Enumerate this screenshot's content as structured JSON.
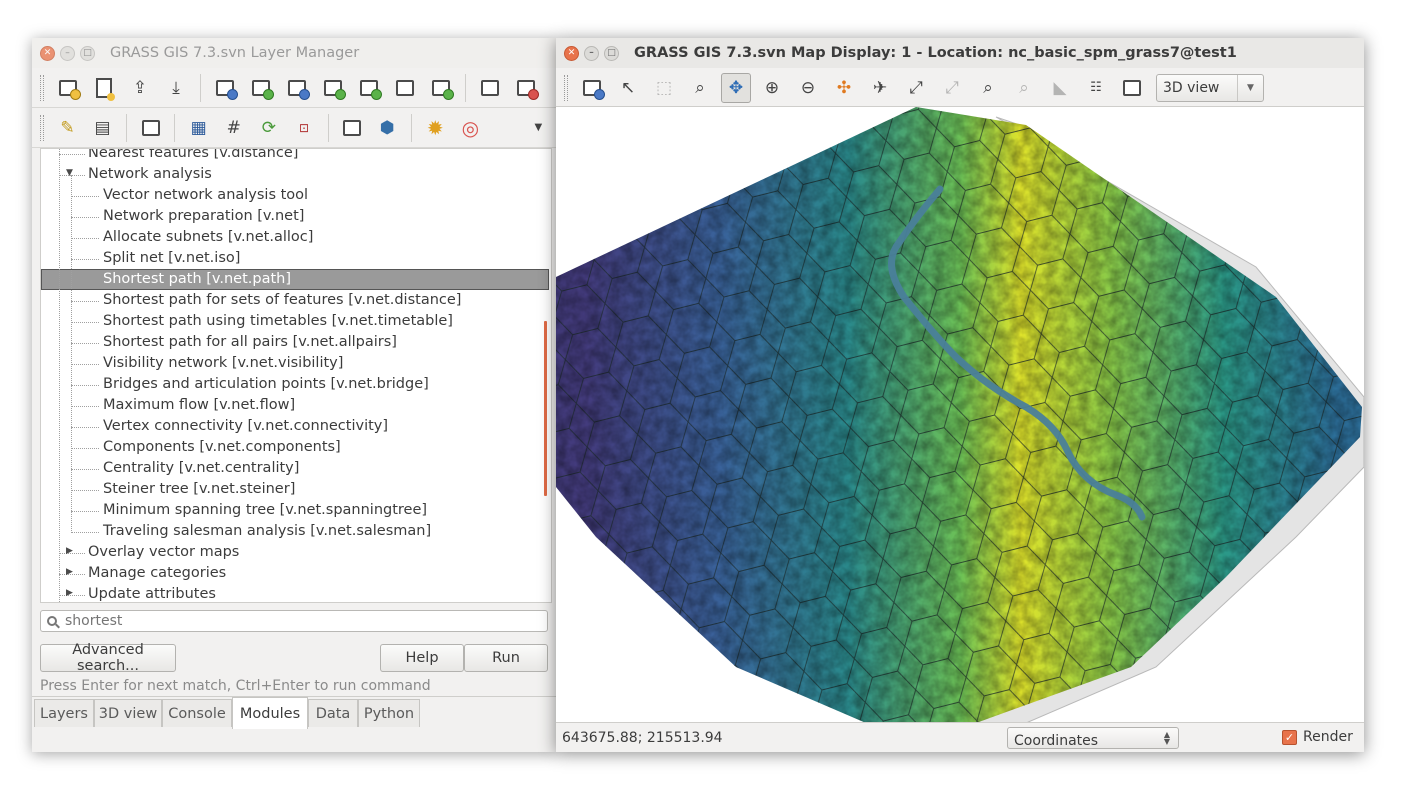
{
  "layer_manager": {
    "title": "GRASS GIS 7.3.svn Layer Manager",
    "tree": [
      {
        "text": "Nearest features   [v.distance]",
        "level": 1
      },
      {
        "text": "Network analysis",
        "level": 1,
        "expanded": true
      },
      {
        "text": "Vector network analysis tool",
        "level": 2
      },
      {
        "text": "Network preparation   [v.net]",
        "level": 2
      },
      {
        "text": "Allocate subnets   [v.net.alloc]",
        "level": 2
      },
      {
        "text": "Split net   [v.net.iso]",
        "level": 2
      },
      {
        "text": "Shortest path   [v.net.path]",
        "level": 2,
        "selected": true
      },
      {
        "text": "Shortest path for sets of features   [v.net.distance]",
        "level": 2
      },
      {
        "text": "Shortest path using timetables   [v.net.timetable]",
        "level": 2
      },
      {
        "text": "Shortest path for all pairs   [v.net.allpairs]",
        "level": 2
      },
      {
        "text": "Visibility network   [v.net.visibility]",
        "level": 2
      },
      {
        "text": "Bridges and articulation points   [v.net.bridge]",
        "level": 2
      },
      {
        "text": "Maximum flow   [v.net.flow]",
        "level": 2
      },
      {
        "text": "Vertex connectivity   [v.net.connectivity]",
        "level": 2
      },
      {
        "text": "Components   [v.net.components]",
        "level": 2
      },
      {
        "text": "Centrality   [v.net.centrality]",
        "level": 2
      },
      {
        "text": "Steiner tree   [v.net.steiner]",
        "level": 2
      },
      {
        "text": "Minimum spanning tree   [v.net.spanningtree]",
        "level": 2
      },
      {
        "text": "Traveling salesman analysis   [v.net.salesman]",
        "level": 2
      },
      {
        "text": "Overlay vector maps",
        "level": 1,
        "collapsed": true
      },
      {
        "text": "Manage categories",
        "level": 1,
        "collapsed": true
      },
      {
        "text": "Update attributes",
        "level": 1,
        "collapsed": true
      }
    ],
    "search": {
      "placeholder": "shortest"
    },
    "buttons": {
      "advanced": "Advanced search...",
      "help": "Help",
      "run": "Run"
    },
    "hint": "Press Enter for next match, Ctrl+Enter to run command",
    "tabs": [
      "Layers",
      "3D view",
      "Console",
      "Modules",
      "Data",
      "Python"
    ],
    "active_tab": "Modules"
  },
  "map_display": {
    "title": "GRASS GIS 7.3.svn Map Display: 1 - Location: nc_basic_spm_grass7@test1",
    "view_mode": "3D view",
    "coordinates": "643675.88; 215513.94",
    "coord_mode": "Coordinates",
    "render_label": "Render",
    "render_checked": true
  },
  "colors": {
    "accent": "#e8734b",
    "selection": "#9a9a9a",
    "stream": "#4a7f9a"
  },
  "icons": {
    "lm_toolbar1": [
      "new-display-icon",
      "new-workspace-icon",
      "open-workspace-icon",
      "save-workspace-icon",
      "add-raster-icon",
      "add-multiple-raster-icon",
      "add-raster-misc-icon",
      "add-vector-icon",
      "add-multiple-vector-icon",
      "add-overlay-icon",
      "add-group-icon",
      "add-web-service-icon",
      "duplicate-layer-icon",
      "remove-layer-icon"
    ],
    "lm_toolbar2": [
      "edit-vector-icon",
      "attribute-table-icon",
      "map-calculator-icon",
      "georectify-icon",
      "graphical-modeler-icon",
      "workspace-settings-icon",
      "create-map-icon",
      "python-icon",
      "settings-icon",
      "help-icon"
    ],
    "md_toolbar": [
      "render-map-icon",
      "pointer-icon",
      "select-icon",
      "query-icon",
      "pan-icon",
      "zoom-in-icon",
      "zoom-out-icon",
      "zoom-options-icon",
      "fly-icon",
      "zoom-extent-icon",
      "zoom-back-icon",
      "zoom-region-icon",
      "zoom-menu-icon",
      "analyze-icon",
      "overlay-icon",
      "save-image-icon"
    ]
  }
}
